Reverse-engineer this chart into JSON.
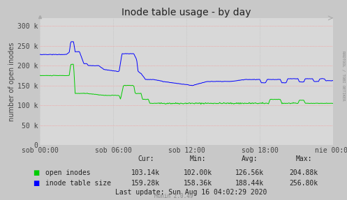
{
  "title": "Inode table usage - by day",
  "ylabel": "number of open inodes",
  "background_color": "#c8c8c8",
  "plot_bg_color": "#d8d8d8",
  "grid_color": "#ff8888",
  "grid_color2": "#bbbbbb",
  "ylim": [
    0,
    320000
  ],
  "yticks": [
    0,
    50000,
    100000,
    150000,
    200000,
    250000,
    300000
  ],
  "ytick_labels": [
    "0",
    "50 k",
    "100 k",
    "150 k",
    "200 k",
    "250 k",
    "300 k"
  ],
  "xtick_labels": [
    "sob 00:00",
    "sob 06:00",
    "sob 12:00",
    "sob 18:00",
    "nie 00:00"
  ],
  "line_green_color": "#00cc00",
  "line_blue_color": "#0000ff",
  "legend_entries": [
    "open inodes",
    "inode table size"
  ],
  "stats_cur": [
    "103.14k",
    "159.28k"
  ],
  "stats_min": [
    "102.00k",
    "158.36k"
  ],
  "stats_avg": [
    "126.56k",
    "188.44k"
  ],
  "stats_max": [
    "204.88k",
    "256.80k"
  ],
  "last_update": "Last update: Sun Aug 16 04:02:29 2020",
  "munin_label": "Munin 2.0.49",
  "rrdtool_label": "RRDTOOL / TOBI OETIKER",
  "title_fontsize": 10,
  "axis_fontsize": 7,
  "tick_fontsize": 7,
  "n_points": 500
}
